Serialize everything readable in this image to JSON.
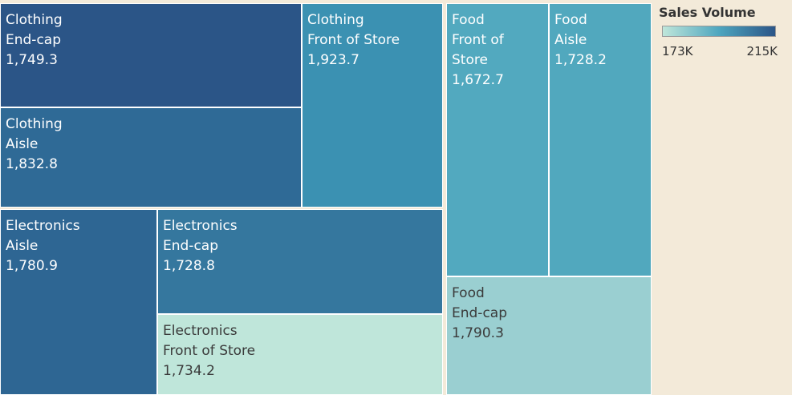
{
  "chart_data": {
    "type": "treemap",
    "legend": {
      "title": "Sales Volume",
      "min_label": "173K",
      "max_label": "215K",
      "placement": "top-right"
    },
    "color_scale": {
      "low": "#bfe6da",
      "mid": "#4ea6bf",
      "high": "#2b5587"
    },
    "groups": [
      {
        "name": "Clothing",
        "items": [
          {
            "label": [
              "Clothing",
              "End-cap"
            ],
            "value_label": "1,749.3",
            "value": 1749.3
          },
          {
            "label": [
              "Clothing",
              "Front of Store"
            ],
            "value_label": "1,923.7",
            "value": 1923.7
          },
          {
            "label": [
              "Clothing",
              "Aisle"
            ],
            "value_label": "1,832.8",
            "value": 1832.8
          }
        ]
      },
      {
        "name": "Electronics",
        "items": [
          {
            "label": [
              "Electronics",
              "Aisle"
            ],
            "value_label": "1,780.9",
            "value": 1780.9
          },
          {
            "label": [
              "Electronics",
              "End-cap"
            ],
            "value_label": "1,728.8",
            "value": 1728.8
          },
          {
            "label": [
              "Electronics",
              "Front of Store"
            ],
            "value_label": "1,734.2",
            "value": 1734.2
          }
        ]
      },
      {
        "name": "Food",
        "items": [
          {
            "label": [
              "Food",
              "Front of",
              "Store"
            ],
            "value_label": "1,672.7",
            "value": 1672.7
          },
          {
            "label": [
              "Food",
              "Aisle"
            ],
            "value_label": "1,728.2",
            "value": 1728.2
          },
          {
            "label": [
              "Food",
              "End-cap"
            ],
            "value_label": "1,790.3",
            "value": 1790.3
          }
        ]
      }
    ],
    "cell_colors": {
      "Clothing|End-cap": "#2b5587",
      "Clothing|Front of Store": "#3b91b2",
      "Clothing|Aisle": "#2f6a96",
      "Electronics|Aisle": "#2e6693",
      "Electronics|End-cap": "#35779e",
      "Electronics|Front of Store": "#bfe6da",
      "Food|Front of Store": "#52a9bf",
      "Food|Aisle": "#51a8be",
      "Food|End-cap": "#9acfd1"
    }
  }
}
